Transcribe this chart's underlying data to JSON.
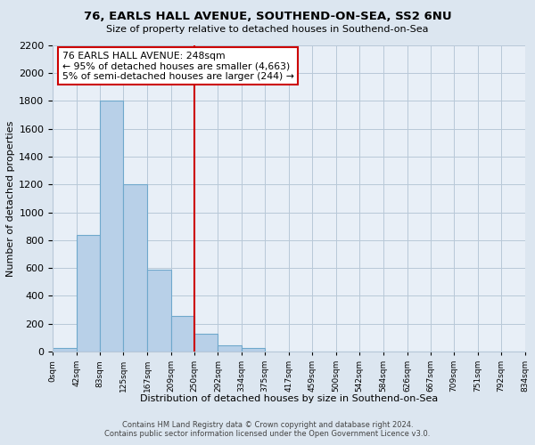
{
  "title": "76, EARLS HALL AVENUE, SOUTHEND-ON-SEA, SS2 6NU",
  "subtitle": "Size of property relative to detached houses in Southend-on-Sea",
  "xlabel": "Distribution of detached houses by size in Southend-on-Sea",
  "ylabel": "Number of detached properties",
  "bin_labels": [
    "0sqm",
    "42sqm",
    "83sqm",
    "125sqm",
    "167sqm",
    "209sqm",
    "250sqm",
    "292sqm",
    "334sqm",
    "375sqm",
    "417sqm",
    "459sqm",
    "500sqm",
    "542sqm",
    "584sqm",
    "626sqm",
    "667sqm",
    "709sqm",
    "751sqm",
    "792sqm",
    "834sqm"
  ],
  "bin_edges": [
    0,
    42,
    83,
    125,
    167,
    209,
    250,
    292,
    334,
    375,
    417,
    459,
    500,
    542,
    584,
    626,
    667,
    709,
    751,
    792,
    834
  ],
  "bar_values": [
    25,
    840,
    1800,
    1200,
    590,
    255,
    125,
    42,
    25,
    0,
    0,
    0,
    0,
    0,
    0,
    0,
    0,
    0,
    0,
    0
  ],
  "bar_color": "#b8d0e8",
  "bar_edge_color": "#6fa8cc",
  "property_line_x": 250,
  "property_line_color": "#cc0000",
  "annotation_line1": "76 EARLS HALL AVENUE: 248sqm",
  "annotation_line2": "← 95% of detached houses are smaller (4,663)",
  "annotation_line3": "5% of semi-detached houses are larger (244) →",
  "annotation_box_color": "#ffffff",
  "annotation_box_edge_color": "#cc0000",
  "ylim": [
    0,
    2200
  ],
  "yticks": [
    0,
    200,
    400,
    600,
    800,
    1000,
    1200,
    1400,
    1600,
    1800,
    2000,
    2200
  ],
  "footer_line1": "Contains HM Land Registry data © Crown copyright and database right 2024.",
  "footer_line2": "Contains public sector information licensed under the Open Government Licence v3.0.",
  "bg_color": "#dce6f0",
  "plot_bg_color": "#e8eff7",
  "grid_color": "#b8c8d8"
}
